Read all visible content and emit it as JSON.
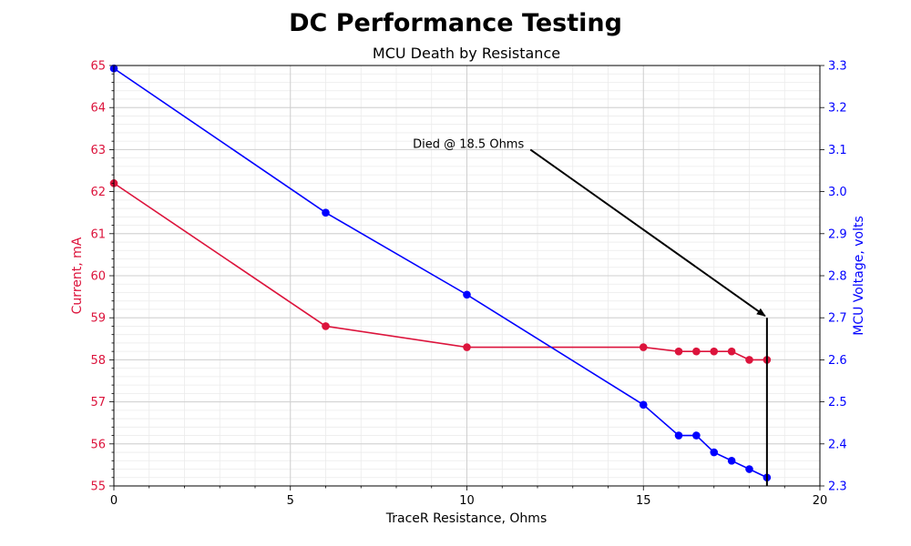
{
  "chart_data": {
    "type": "line",
    "title": "DC Performance Testing",
    "subtitle": "MCU Death by Resistance",
    "xlabel": "TraceR Resistance, Ohms",
    "ylabel_left": "Current, mA",
    "ylabel_right": "MCU Voltage, volts",
    "xlim": [
      0,
      20
    ],
    "ylim_left": [
      55,
      65
    ],
    "ylim_right": [
      2.3,
      3.3
    ],
    "x_ticks": [
      "0",
      "5",
      "10",
      "15",
      "20"
    ],
    "y_left_ticks": [
      "55",
      "56",
      "57",
      "58",
      "59",
      "60",
      "61",
      "62",
      "63",
      "64",
      "65"
    ],
    "y_right_ticks": [
      "2.3",
      "2.4",
      "2.5",
      "2.6",
      "2.7",
      "2.8",
      "2.9",
      "3.0",
      "3.1",
      "3.2",
      "3.3"
    ],
    "grid": true,
    "series": [
      {
        "axis": "left",
        "color": "#dc143c",
        "x": [
          0,
          6,
          10,
          15,
          16,
          16.5,
          17,
          17.5,
          18,
          18.5
        ],
        "y": [
          62.2,
          58.8,
          58.3,
          58.3,
          58.2,
          58.2,
          58.2,
          58.2,
          58.0,
          58.0
        ]
      },
      {
        "axis": "right",
        "color": "#0000ff",
        "x": [
          0,
          6,
          10,
          15,
          16,
          16.5,
          17,
          17.5,
          18,
          18.5
        ],
        "y": [
          3.293,
          2.95,
          2.755,
          2.493,
          2.42,
          2.42,
          2.38,
          2.36,
          2.34,
          2.32
        ]
      }
    ],
    "death_line": {
      "x": 18.5,
      "y_left": [
        55,
        59
      ],
      "color": "#000000"
    },
    "annotation": {
      "text": "Died @ 18.5 Ohms",
      "point": {
        "x": 18.5,
        "y_left": 59
      },
      "text_at": {
        "x": 11.8,
        "y_left": 63
      }
    }
  }
}
